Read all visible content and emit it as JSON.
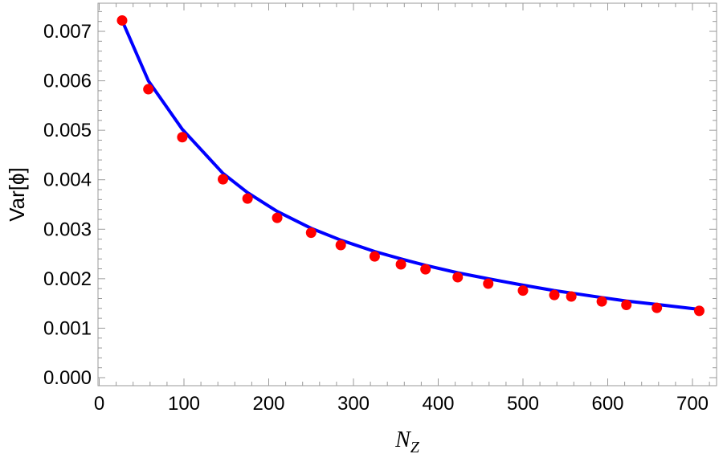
{
  "chart_data": {
    "type": "scatter",
    "xlabel": "N",
    "xlabel_sub": "Z",
    "ylabel": "Var[ϕ]",
    "xlim": [
      0,
      720
    ],
    "ylim": [
      -5e-05,
      0.0076
    ],
    "xticks": [
      0,
      100,
      200,
      300,
      400,
      500,
      600,
      700
    ],
    "xtick_labels": [
      "0",
      "100",
      "200",
      "300",
      "400",
      "500",
      "600",
      "700"
    ],
    "yticks": [
      0.0,
      0.001,
      0.002,
      0.003,
      0.004,
      0.005,
      0.006,
      0.007
    ],
    "ytick_labels": [
      "0.000",
      "0.001",
      "0.002",
      "0.003",
      "0.004",
      "0.005",
      "0.006",
      "0.007"
    ],
    "grid": false,
    "frame": true,
    "colors": {
      "points": "#ff0000",
      "curve": "#0000ff",
      "frame": "#9a9a9a"
    },
    "series": [
      {
        "kind": "points",
        "x": [
          27,
          58,
          98,
          146,
          175,
          210,
          250,
          285,
          325,
          356,
          385,
          423,
          459,
          500,
          537,
          557,
          593,
          622,
          658,
          708
        ],
        "y": [
          0.00722,
          0.00583,
          0.00486,
          0.00401,
          0.00362,
          0.00323,
          0.00293,
          0.00268,
          0.00245,
          0.00229,
          0.00219,
          0.00203,
          0.0019,
          0.00176,
          0.00167,
          0.00164,
          0.00154,
          0.00147,
          0.00141,
          0.00135
        ]
      },
      {
        "kind": "line",
        "x": [
          27,
          58,
          98,
          146,
          175,
          210,
          250,
          285,
          325,
          356,
          385,
          423,
          459,
          500,
          537,
          557,
          593,
          622,
          658,
          708
        ],
        "y": [
          0.00722,
          0.006,
          0.00502,
          0.00413,
          0.00374,
          0.00336,
          0.00302,
          0.00278,
          0.00255,
          0.0024,
          0.00227,
          0.00212,
          0.002,
          0.00187,
          0.00176,
          0.00171,
          0.00162,
          0.00155,
          0.00148,
          0.00138
        ]
      }
    ]
  }
}
